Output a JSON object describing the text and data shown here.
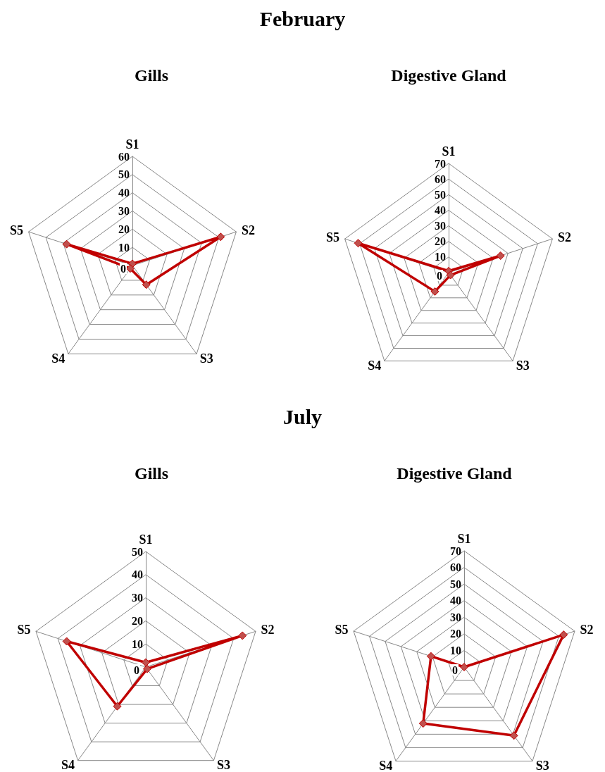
{
  "chart_data": [
    {
      "type": "radar",
      "title": "Gills",
      "annotations": [
        "February"
      ],
      "categories": [
        "S1",
        "S2",
        "S3",
        "S4",
        "S5"
      ],
      "ylim": [
        0,
        60
      ],
      "yticks": [
        0,
        10,
        20,
        30,
        40,
        50,
        60
      ],
      "marker": "diamond",
      "series": [
        {
          "color": "#c00000",
          "values": [
            1,
            51,
            13,
            2,
            38
          ]
        }
      ]
    },
    {
      "type": "radar",
      "title": "Digestive Gland",
      "categories": [
        "S1",
        "S2",
        "S3",
        "S4",
        "S5"
      ],
      "ylim": [
        0,
        70
      ],
      "yticks": [
        0,
        10,
        20,
        30,
        40,
        50,
        60,
        70
      ],
      "marker": "diamond",
      "series": [
        {
          "color": "#c00000",
          "values": [
            1,
            35,
            2,
            15,
            61
          ]
        }
      ]
    },
    {
      "type": "radar",
      "title": "Gills",
      "annotations": [
        "July"
      ],
      "categories": [
        "S1",
        "S2",
        "S3",
        "S4",
        "S5"
      ],
      "ylim": [
        0,
        50
      ],
      "yticks": [
        0,
        10,
        20,
        30,
        40,
        50
      ],
      "marker": "diamond",
      "series": [
        {
          "color": "#c00000",
          "values": [
            2,
            44,
            1,
            21,
            36
          ]
        }
      ]
    },
    {
      "type": "radar",
      "title": "Digestive Gland",
      "categories": [
        "S1",
        "S2",
        "S3",
        "S4",
        "S5"
      ],
      "ylim": [
        0,
        70
      ],
      "yticks": [
        0,
        10,
        20,
        30,
        40,
        50,
        60,
        70
      ],
      "marker": "diamond",
      "series": [
        {
          "color": "#c00000",
          "values": [
            0,
            63,
            51,
            42,
            21
          ]
        }
      ]
    }
  ]
}
